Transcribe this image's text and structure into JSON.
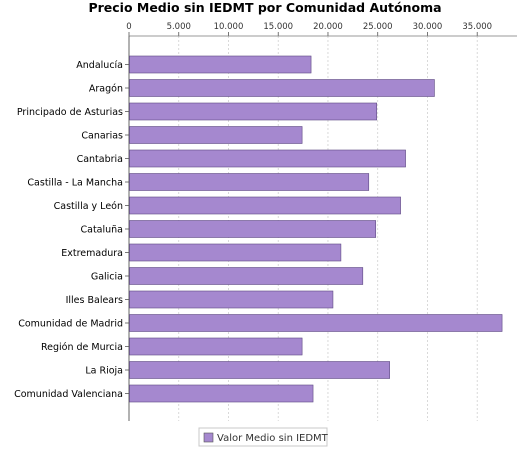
{
  "chart_data": {
    "type": "bar",
    "orientation": "horizontal",
    "title": "Precio Medio sin IEDMT por Comunidad Autónoma",
    "categories": [
      "Andalucía",
      "Aragón",
      "Principado de Asturias",
      "Canarias",
      "Cantabria",
      "Castilla - La Mancha",
      "Castilla y León",
      "Cataluña",
      "Extremadura",
      "Galicia",
      "Illes Balears",
      "Comunidad de Madrid",
      "Región de Murcia",
      "La Rioja",
      "Comunidad Valenciana"
    ],
    "series": [
      {
        "name": "Valor Medio sin IEDMT",
        "color": "#a588cf",
        "values": [
          18300,
          30700,
          24900,
          17400,
          27800,
          24100,
          27300,
          24800,
          21300,
          23500,
          20500,
          37500,
          17400,
          26200,
          18500
        ]
      }
    ],
    "xlim": [
      0,
      39000
    ],
    "x_ticks": [
      0,
      5000,
      10000,
      15000,
      20000,
      25000,
      30000,
      35000
    ],
    "x_tick_labels": [
      "0",
      "5.000",
      "10.000",
      "15.000",
      "20.000",
      "25.000",
      "30.000",
      "35.000"
    ],
    "axis_position": "top",
    "grid": true,
    "legend_position": "bottom-center"
  }
}
